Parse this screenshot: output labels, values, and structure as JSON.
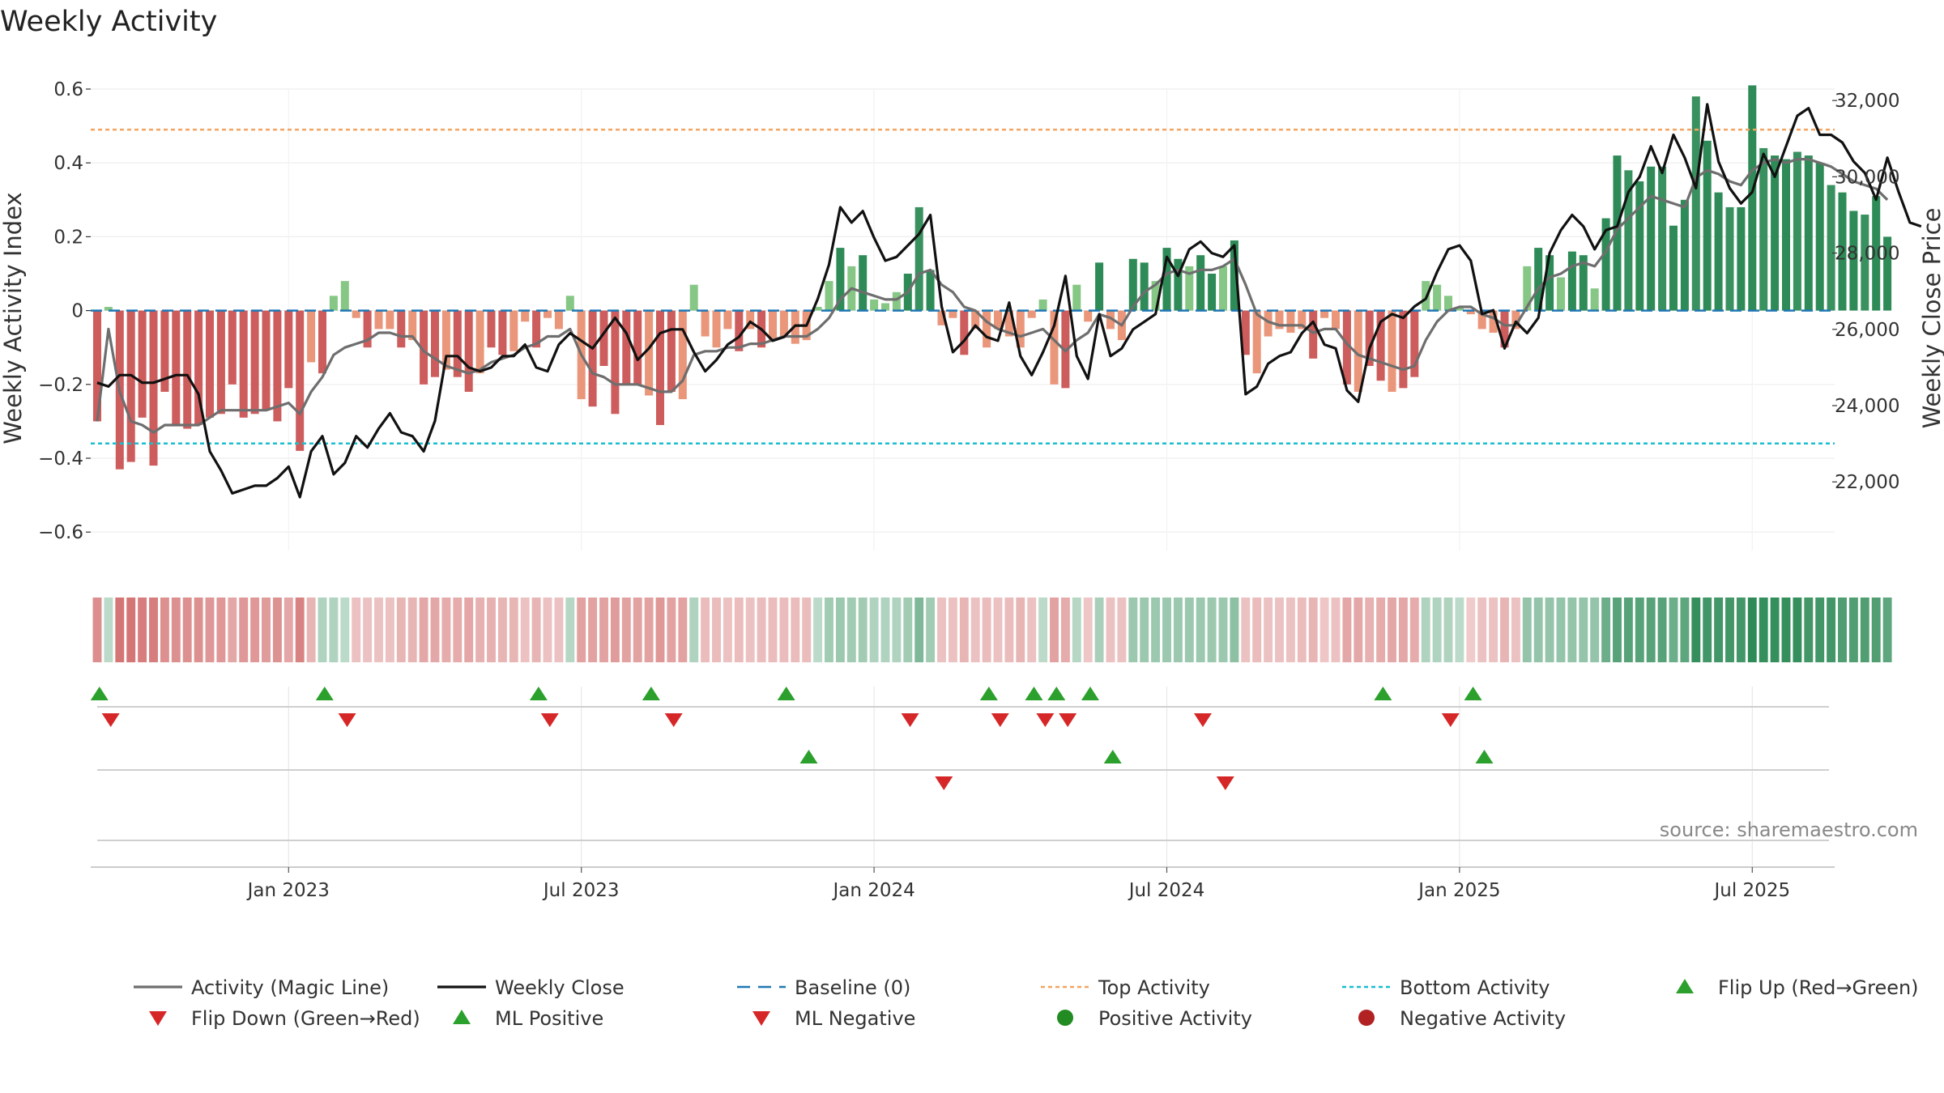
{
  "chart_data": {
    "type": "bar",
    "title": "Weekly Activity",
    "ylabel_left": "Weekly Activity Index",
    "ylabel_right": "Weekly Close Price",
    "ylim_left": [
      -0.65,
      0.6
    ],
    "ylim_right": [
      20200,
      32300
    ],
    "yticks_left": [
      0.6,
      0.4,
      0.2,
      0,
      -0.2,
      -0.4,
      -0.6
    ],
    "yticks_left_labels": [
      "0.6",
      "0.4",
      "0.2",
      "0",
      "−0.2",
      "−0.4",
      "−0.6"
    ],
    "yticks_right": [
      32000,
      30000,
      28000,
      26000,
      24000,
      22000
    ],
    "yticks_right_labels": [
      "32,000",
      "30,000",
      "28,000",
      "26,000",
      "24,000",
      "22,000"
    ],
    "xaxis_start_week": "2022-09-05",
    "week_count": 160,
    "xticks": [
      {
        "week": 17,
        "label": "Jan 2023"
      },
      {
        "week": 43,
        "label": "Jul 2023"
      },
      {
        "week": 69,
        "label": "Jan 2024"
      },
      {
        "week": 95,
        "label": "Jul 2024"
      },
      {
        "week": 121,
        "label": "Jan 2025"
      },
      {
        "week": 147,
        "label": "Jul 2025"
      }
    ],
    "reference_lines": {
      "baseline": 0,
      "top_activity": 0.49,
      "bottom_activity": -0.36
    },
    "activity_index": [
      -0.3,
      0.01,
      -0.43,
      -0.41,
      -0.29,
      -0.42,
      -0.22,
      -0.31,
      -0.32,
      -0.31,
      -0.29,
      -0.28,
      -0.2,
      -0.29,
      -0.28,
      -0.27,
      -0.3,
      -0.21,
      -0.38,
      -0.14,
      -0.17,
      0.04,
      0.08,
      -0.02,
      -0.1,
      -0.05,
      -0.05,
      -0.1,
      -0.08,
      -0.2,
      -0.18,
      -0.16,
      -0.18,
      -0.22,
      -0.17,
      -0.1,
      -0.12,
      -0.11,
      -0.03,
      -0.1,
      -0.02,
      -0.05,
      0.04,
      -0.24,
      -0.26,
      -0.15,
      -0.28,
      -0.2,
      -0.2,
      -0.23,
      -0.31,
      -0.22,
      -0.24,
      0.07,
      -0.07,
      -0.1,
      -0.05,
      -0.11,
      -0.05,
      -0.1,
      -0.08,
      -0.07,
      -0.09,
      -0.08,
      0.01,
      0.08,
      0.17,
      0.12,
      0.15,
      0.03,
      0.02,
      0.05,
      0.1,
      0.28,
      0.11,
      -0.04,
      -0.02,
      -0.12,
      -0.05,
      -0.1,
      -0.05,
      -0.07,
      -0.1,
      -0.02,
      0.03,
      -0.2,
      -0.21,
      0.07,
      -0.03,
      0.13,
      -0.05,
      -0.08,
      0.14,
      0.13,
      0.08,
      0.17,
      0.14,
      0.12,
      0.15,
      0.1,
      0.12,
      0.19,
      -0.12,
      -0.17,
      -0.07,
      -0.05,
      -0.06,
      -0.05,
      -0.13,
      -0.02,
      -0.05,
      -0.2,
      -0.22,
      -0.15,
      -0.19,
      -0.22,
      -0.21,
      -0.18,
      0.08,
      0.07,
      0.04,
      0.01,
      -0.01,
      -0.05,
      -0.06,
      -0.1,
      -0.05,
      0.12,
      0.17,
      0.15,
      0.09,
      0.16,
      0.15,
      0.06,
      0.25,
      0.42,
      0.38,
      0.35,
      0.39,
      0.39,
      0.23,
      0.3,
      0.58,
      0.46,
      0.32,
      0.28,
      0.28,
      0.61,
      0.44,
      0.42,
      0.41,
      0.43,
      0.42,
      0.4,
      0.34,
      0.32,
      0.27,
      0.26,
      0.31,
      0.2
    ],
    "activity_line": [
      -0.3,
      -0.05,
      -0.22,
      -0.3,
      -0.31,
      -0.33,
      -0.31,
      -0.31,
      -0.31,
      -0.31,
      -0.29,
      -0.27,
      -0.27,
      -0.27,
      -0.27,
      -0.27,
      -0.26,
      -0.25,
      -0.28,
      -0.22,
      -0.18,
      -0.12,
      -0.1,
      -0.09,
      -0.08,
      -0.06,
      -0.06,
      -0.07,
      -0.07,
      -0.11,
      -0.13,
      -0.15,
      -0.16,
      -0.17,
      -0.16,
      -0.14,
      -0.13,
      -0.12,
      -0.1,
      -0.09,
      -0.07,
      -0.07,
      -0.05,
      -0.12,
      -0.17,
      -0.18,
      -0.2,
      -0.2,
      -0.2,
      -0.21,
      -0.22,
      -0.22,
      -0.19,
      -0.12,
      -0.11,
      -0.11,
      -0.1,
      -0.1,
      -0.09,
      -0.09,
      -0.08,
      -0.07,
      -0.07,
      -0.07,
      -0.05,
      -0.02,
      0.03,
      0.06,
      0.05,
      0.04,
      0.03,
      0.03,
      0.05,
      0.1,
      0.11,
      0.07,
      0.05,
      0.01,
      0.0,
      -0.03,
      -0.05,
      -0.06,
      -0.07,
      -0.06,
      -0.05,
      -0.08,
      -0.11,
      -0.08,
      -0.06,
      -0.01,
      -0.02,
      -0.04,
      0.01,
      0.05,
      0.07,
      0.1,
      0.11,
      0.1,
      0.11,
      0.11,
      0.12,
      0.14,
      0.07,
      -0.01,
      -0.03,
      -0.04,
      -0.04,
      -0.04,
      -0.06,
      -0.05,
      -0.05,
      -0.09,
      -0.12,
      -0.13,
      -0.14,
      -0.15,
      -0.16,
      -0.15,
      -0.08,
      -0.03,
      0.0,
      0.01,
      0.01,
      -0.01,
      -0.02,
      -0.04,
      -0.04,
      0.01,
      0.06,
      0.09,
      0.1,
      0.12,
      0.13,
      0.12,
      0.16,
      0.22,
      0.25,
      0.28,
      0.31,
      0.3,
      0.29,
      0.28,
      0.36,
      0.38,
      0.37,
      0.35,
      0.34,
      0.38,
      0.4,
      0.41,
      0.4,
      0.41,
      0.41,
      0.4,
      0.39,
      0.37,
      0.35,
      0.34,
      0.33,
      0.3
    ],
    "weekly_close": [
      24600,
      24500,
      24800,
      24800,
      24600,
      24600,
      24700,
      24800,
      24800,
      24300,
      22800,
      22300,
      21700,
      21800,
      21900,
      21900,
      22100,
      22400,
      21600,
      22800,
      23200,
      22200,
      22500,
      23200,
      22900,
      23400,
      23800,
      23300,
      23200,
      22800,
      23600,
      25300,
      25300,
      25000,
      24900,
      25000,
      25300,
      25300,
      25600,
      25000,
      24900,
      25600,
      25900,
      25700,
      25500,
      25900,
      26300,
      25900,
      25200,
      25500,
      25900,
      26000,
      26000,
      25400,
      24900,
      25200,
      25600,
      25800,
      26200,
      26000,
      25700,
      25800,
      26100,
      26100,
      26800,
      27700,
      29200,
      28800,
      29100,
      28400,
      27800,
      27900,
      28200,
      28500,
      29000,
      26600,
      25400,
      25700,
      26100,
      25800,
      25700,
      26700,
      25300,
      24800,
      25400,
      26100,
      27400,
      25300,
      24700,
      26400,
      25300,
      25500,
      26000,
      26200,
      26400,
      27900,
      27400,
      28100,
      28300,
      28000,
      27900,
      28200,
      24300,
      24500,
      25100,
      25300,
      25400,
      25900,
      26200,
      25600,
      25500,
      24400,
      24100,
      25500,
      26200,
      26400,
      26300,
      26600,
      26800,
      27500,
      28100,
      28200,
      27800,
      26400,
      26500,
      25500,
      26200,
      25900,
      26300,
      28000,
      28600,
      29000,
      28700,
      28100,
      28600,
      28700,
      29600,
      30000,
      30800,
      30100,
      31100,
      30500,
      29700,
      31900,
      30400,
      29700,
      29300,
      29600,
      30600,
      30000,
      30800,
      31600,
      31800,
      31100,
      31100,
      30900,
      30400,
      30100,
      29400,
      30500,
      29600,
      28800,
      28700
    ],
    "ribbon_values": [
      -0.35,
      0.05,
      -0.45,
      -0.45,
      -0.42,
      -0.42,
      -0.33,
      -0.33,
      -0.33,
      -0.33,
      -0.3,
      -0.3,
      -0.22,
      -0.3,
      -0.3,
      -0.28,
      -0.32,
      -0.23,
      -0.4,
      -0.15,
      0.1,
      0.1,
      0.05,
      -0.1,
      -0.1,
      -0.1,
      -0.1,
      -0.15,
      -0.15,
      -0.22,
      -0.22,
      -0.2,
      -0.2,
      -0.23,
      -0.18,
      -0.18,
      -0.15,
      -0.15,
      -0.1,
      -0.15,
      -0.1,
      -0.1,
      0.08,
      -0.25,
      -0.25,
      -0.25,
      -0.28,
      -0.25,
      -0.25,
      -0.25,
      -0.3,
      -0.25,
      -0.25,
      0.1,
      -0.12,
      -0.12,
      -0.1,
      -0.12,
      -0.1,
      -0.12,
      -0.12,
      -0.12,
      -0.12,
      -0.12,
      0.05,
      0.15,
      0.18,
      0.15,
      0.15,
      0.1,
      0.1,
      0.1,
      0.15,
      0.28,
      0.15,
      -0.1,
      -0.1,
      -0.15,
      -0.1,
      -0.12,
      -0.1,
      -0.12,
      -0.15,
      -0.1,
      0.05,
      -0.25,
      -0.2,
      0.08,
      -0.08,
      0.12,
      -0.1,
      -0.1,
      0.18,
      0.18,
      0.18,
      0.18,
      0.18,
      0.18,
      0.18,
      0.18,
      0.18,
      0.22,
      -0.1,
      -0.12,
      -0.1,
      -0.1,
      -0.1,
      -0.12,
      -0.15,
      -0.08,
      -0.1,
      -0.22,
      -0.22,
      -0.18,
      -0.2,
      -0.22,
      -0.22,
      -0.2,
      0.1,
      0.1,
      0.1,
      0.05,
      -0.05,
      -0.1,
      -0.1,
      -0.15,
      -0.1,
      0.2,
      0.2,
      0.2,
      0.2,
      0.2,
      0.2,
      0.2,
      0.35,
      0.42,
      0.42,
      0.42,
      0.42,
      0.42,
      0.35,
      0.4,
      0.55,
      0.5,
      0.5,
      0.5,
      0.5,
      0.6,
      0.55,
      0.55,
      0.55,
      0.55,
      0.5,
      0.5,
      0.5,
      0.45,
      0.45,
      0.45,
      0.45,
      0.4
    ],
    "flip_up_weeks": [
      1,
      21,
      40,
      50,
      62,
      80,
      84,
      86,
      89,
      115,
      123
    ],
    "flip_down_weeks": [
      2,
      23,
      41,
      52,
      73,
      81,
      85,
      87,
      99,
      121
    ],
    "ml_positive_weeks": [
      64,
      91,
      124
    ],
    "ml_negative_weeks": [
      76,
      101
    ],
    "colors": {
      "strong_positive": "#2e8b57",
      "light_positive": "#7fc47f",
      "strong_negative": "#cd5c5c",
      "light_negative": "#e9967a",
      "magic_line": "#6e6e6e",
      "weekly_close": "#111111",
      "baseline": "#1f77b4",
      "top_activity": "#f4a460",
      "bottom_activity": "#17becf",
      "flip_up": "#2ca02c",
      "flip_down": "#d62728",
      "ml_positive": "#2ca02c",
      "ml_negative": "#d62728",
      "positive_dot": "#228b22",
      "negative_dot": "#b22222"
    },
    "legend_position": "bottom",
    "legend": [
      {
        "label": "Activity (Magic Line)",
        "icon": "gray-line"
      },
      {
        "label": "Weekly Close",
        "icon": "black-line"
      },
      {
        "label": "Baseline (0)",
        "icon": "blue-dashed-line"
      },
      {
        "label": "Top Activity",
        "icon": "orange-dotted-line"
      },
      {
        "label": "Bottom Activity",
        "icon": "cyan-dotted-line"
      },
      {
        "label": "Flip Up (Red→Green)",
        "icon": "green-triangle-up"
      },
      {
        "label": "Flip Down (Green→Red)",
        "icon": "red-triangle-down"
      },
      {
        "label": "ML Positive",
        "icon": "green-triangle-up"
      },
      {
        "label": "ML Negative",
        "icon": "red-triangle-down"
      },
      {
        "label": "Positive Activity",
        "icon": "green-circle"
      },
      {
        "label": "Negative Activity",
        "icon": "red-circle"
      }
    ],
    "source": "source: sharemaestro.com"
  }
}
